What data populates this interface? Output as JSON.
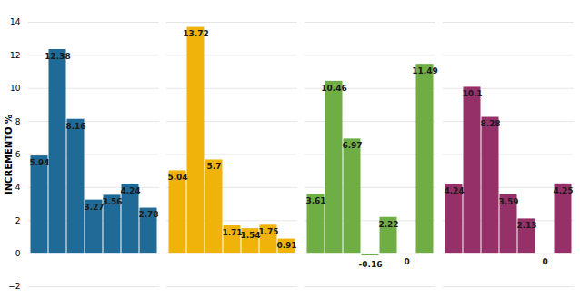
{
  "chart_data": {
    "type": "bar",
    "y_label": "INCREMENTO %",
    "categories": [
      null,
      null,
      null,
      null,
      null,
      null,
      null
    ],
    "series": [
      {
        "color": "#1f6a96",
        "values": [
          5.94,
          12.38,
          8.16,
          3.27,
          3.56,
          4.24,
          2.78
        ]
      },
      {
        "color": "#f0b30a",
        "values": [
          5.04,
          13.72,
          5.7,
          1.71,
          1.54,
          1.75,
          0.91
        ]
      },
      {
        "color": "#6fae45",
        "values": [
          3.61,
          10.46,
          6.97,
          -0.16,
          2.22,
          0,
          11.49
        ]
      },
      {
        "color": "#953069",
        "values": [
          4.24,
          10.1,
          8.28,
          3.59,
          2.13,
          0,
          4.25
        ]
      }
    ],
    "ylim": [
      -2,
      14
    ],
    "yticks": [
      -2,
      0,
      2,
      4,
      6,
      8,
      10,
      12,
      14
    ],
    "grid": true,
    "data_labels": true,
    "tick_labels": "y"
  }
}
